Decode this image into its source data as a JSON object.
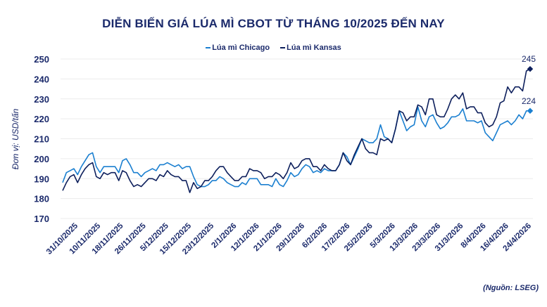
{
  "chart_data": {
    "type": "line",
    "title": "DIỄN BIẾN GIÁ LÚA MÌ CBOT TỪ THÁNG 10/2025 ĐẾN NAY",
    "ylabel": "Đơn vị: USD/tấn",
    "xlabel": "",
    "ylim": [
      170,
      250
    ],
    "yticks": [
      170,
      180,
      190,
      200,
      210,
      220,
      230,
      240,
      250
    ],
    "grid": true,
    "legend_placement": "top",
    "x_tick_labels": [
      "31/10/2025",
      "10/11/2025",
      "18/11/2025",
      "26/11/2025",
      "5/12/2025",
      "15/12/2025",
      "23/12/2025",
      "2/1/2026",
      "12/1/2026",
      "21/1/2026",
      "29/1/2026",
      "6/2/2026",
      "17/2/2026",
      "25/2/2026",
      "5/3/2026",
      "13/3/2026",
      "23/3/2026",
      "31/3/2026",
      "8/4/2026",
      "16/4/2026",
      "24/4/2026"
    ],
    "series": [
      {
        "name": "Lúa mì Chicago",
        "color": "#1a7fd0",
        "end_label": "224",
        "values": [
          188,
          193,
          194,
          195,
          192,
          196,
          199,
          202,
          203,
          196,
          193,
          196,
          196,
          196,
          196,
          193,
          199,
          200,
          197,
          193,
          193,
          191,
          193,
          194,
          195,
          194,
          197,
          197,
          198,
          197,
          196,
          197,
          195,
          196,
          196,
          191,
          187,
          186,
          186,
          187,
          189,
          189,
          191,
          190,
          188,
          187,
          186,
          186,
          188,
          187,
          190,
          190,
          190,
          187,
          187,
          187,
          186,
          190,
          187,
          186,
          189,
          193,
          191,
          192,
          195,
          197,
          196,
          193,
          194,
          193,
          195,
          194,
          194,
          194,
          197,
          203,
          201,
          197,
          201,
          205,
          210,
          209,
          208,
          208,
          210,
          217,
          211,
          210,
          208,
          215,
          224,
          219,
          214,
          216,
          217,
          226,
          219,
          216,
          221,
          222,
          218,
          215,
          216,
          218,
          221,
          221,
          222,
          225,
          219,
          219,
          219,
          218,
          219,
          213,
          211,
          209,
          213,
          217,
          218,
          219,
          217,
          219,
          222,
          220,
          224,
          224
        ]
      },
      {
        "name": "Lúa mì Kansas",
        "color": "#0d1f5c",
        "end_label": "245",
        "values": [
          184,
          188,
          191,
          192,
          188,
          192,
          195,
          197,
          198,
          191,
          190,
          193,
          192,
          193,
          193,
          189,
          194,
          193,
          189,
          186,
          187,
          186,
          188,
          190,
          190,
          189,
          192,
          191,
          194,
          192,
          191,
          191,
          189,
          189,
          183,
          188,
          185,
          186,
          189,
          189,
          191,
          194,
          196,
          196,
          193,
          191,
          189,
          189,
          191,
          191,
          195,
          194,
          194,
          193,
          190,
          191,
          191,
          193,
          192,
          190,
          193,
          198,
          195,
          196,
          199,
          200,
          200,
          196,
          196,
          194,
          197,
          195,
          194,
          194,
          197,
          203,
          199,
          197,
          202,
          206,
          210,
          205,
          203,
          203,
          202,
          210,
          209,
          210,
          208,
          215,
          224,
          223,
          219,
          221,
          221,
          227,
          226,
          222,
          230,
          230,
          222,
          221,
          221,
          225,
          230,
          232,
          230,
          233,
          225,
          226,
          226,
          223,
          223,
          218,
          216,
          217,
          221,
          228,
          229,
          236,
          233,
          236,
          236,
          234,
          244,
          245
        ]
      }
    ]
  },
  "source": "(Nguồn: LSEG)"
}
